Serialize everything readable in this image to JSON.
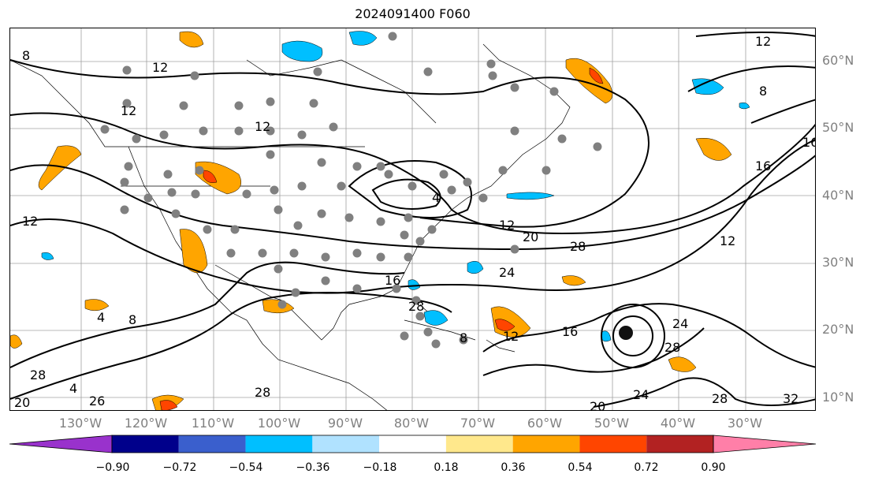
{
  "title": "2024091400 F060",
  "lat_labels": [
    "60°N",
    "50°N",
    "40°N",
    "30°N",
    "20°N",
    "10°N"
  ],
  "lon_labels": [
    "130°W",
    "120°W",
    "110°W",
    "100°W",
    "90°W",
    "80°W",
    "70°W",
    "60°W",
    "50°W",
    "40°W",
    "30°W"
  ],
  "colorbar": {
    "ticks": [
      "−0.90",
      "−0.72",
      "−0.54",
      "−0.36",
      "−0.18",
      "0.18",
      "0.36",
      "0.54",
      "0.72",
      "0.90"
    ],
    "colors": [
      "#9932cc",
      "#00008b",
      "#3a5fcd",
      "#00bfff",
      "#b0e2ff",
      "#ffffff",
      "#ffe88c",
      "#ffa500",
      "#ff4500",
      "#b22222",
      "#ff7fa8"
    ]
  },
  "contour_labels": [
    "4",
    "8",
    "12",
    "16",
    "20",
    "24",
    "28",
    "32"
  ]
}
